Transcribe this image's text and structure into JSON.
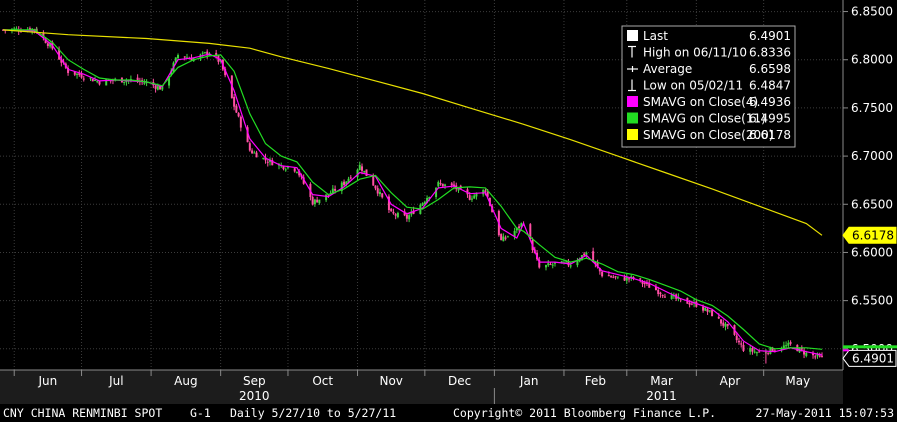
{
  "chart_data": {
    "type": "candlestick",
    "y_axis": {
      "side": "right",
      "ylim": [
        6.478,
        6.862
      ],
      "ticks": [
        "6.8500",
        "6.8000",
        "6.7500",
        "6.7000",
        "6.6500",
        "6.6000",
        "6.5500",
        "6.5000"
      ],
      "tick_values": [
        6.85,
        6.8,
        6.75,
        6.7,
        6.65,
        6.6,
        6.55,
        6.5
      ]
    },
    "x_axis": {
      "months": [
        "Jun",
        "Jul",
        "Aug",
        "Sep",
        "Oct",
        "Nov",
        "Dec",
        "Jan",
        "Feb",
        "Mar",
        "Apr",
        "May"
      ],
      "years": [
        "2010",
        "2011"
      ],
      "range": [
        "2010-05-27",
        "2011-05-27"
      ]
    },
    "legend": {
      "placement": "top-right",
      "rows": [
        {
          "label": "Last",
          "value": "6.4901",
          "marker": "white-square"
        },
        {
          "label": "High on 06/11/10",
          "value": "6.8336",
          "marker": "high-glyph"
        },
        {
          "label": "Average",
          "value": "6.6598",
          "marker": "average-glyph"
        },
        {
          "label": "Low on 05/02/11",
          "value": "6.4847",
          "marker": "low-glyph"
        },
        {
          "label": "SMAVG on Close(4)",
          "value": "6.4936",
          "marker": "magenta-square"
        },
        {
          "label": "SMAVG on Close(11)",
          "value": "6.4995",
          "marker": "green-square"
        },
        {
          "label": "SMAVG on Close(200)",
          "value": "6.6178",
          "marker": "yellow-square"
        }
      ]
    },
    "value_tags": [
      {
        "text": "6.6178",
        "value": 6.6178,
        "color": "#ffff00"
      },
      {
        "text": "6.4901",
        "value": 6.4901,
        "color": "#ffffff"
      }
    ],
    "series": [
      {
        "name": "SMAVG on Close(4)",
        "color": "#ff00ff",
        "points": [
          [
            "2010-05-27",
            6.831
          ],
          [
            "2010-06-10",
            6.83
          ],
          [
            "2010-06-18",
            6.815
          ],
          [
            "2010-06-25",
            6.79
          ],
          [
            "2010-07-02",
            6.785
          ],
          [
            "2010-07-09",
            6.778
          ],
          [
            "2010-07-16",
            6.779
          ],
          [
            "2010-07-23",
            6.778
          ],
          [
            "2010-07-30",
            6.777
          ],
          [
            "2010-08-06",
            6.772
          ],
          [
            "2010-08-13",
            6.8
          ],
          [
            "2010-08-20",
            6.802
          ],
          [
            "2010-08-27",
            6.806
          ],
          [
            "2010-09-01",
            6.8
          ],
          [
            "2010-09-07",
            6.768
          ],
          [
            "2010-09-14",
            6.718
          ],
          [
            "2010-09-21",
            6.698
          ],
          [
            "2010-09-28",
            6.69
          ],
          [
            "2010-10-05",
            6.688
          ],
          [
            "2010-10-12",
            6.66
          ],
          [
            "2010-10-19",
            6.658
          ],
          [
            "2010-10-26",
            6.668
          ],
          [
            "2010-11-02",
            6.683
          ],
          [
            "2010-11-09",
            6.679
          ],
          [
            "2010-11-16",
            6.65
          ],
          [
            "2010-11-23",
            6.64
          ],
          [
            "2010-11-30",
            6.646
          ],
          [
            "2010-12-07",
            6.667
          ],
          [
            "2010-12-14",
            6.669
          ],
          [
            "2010-12-21",
            6.661
          ],
          [
            "2010-12-28",
            6.662
          ],
          [
            "2011-01-04",
            6.625
          ],
          [
            "2011-01-11",
            6.615
          ],
          [
            "2011-01-14",
            6.63
          ],
          [
            "2011-01-21",
            6.59
          ],
          [
            "2011-01-28",
            6.59
          ],
          [
            "2011-02-04",
            6.588
          ],
          [
            "2011-02-11",
            6.597
          ],
          [
            "2011-02-18",
            6.581
          ],
          [
            "2011-02-25",
            6.577
          ],
          [
            "2011-03-04",
            6.573
          ],
          [
            "2011-03-11",
            6.568
          ],
          [
            "2011-03-18",
            6.56
          ],
          [
            "2011-03-25",
            6.552
          ],
          [
            "2011-04-01",
            6.547
          ],
          [
            "2011-04-08",
            6.541
          ],
          [
            "2011-04-15",
            6.528
          ],
          [
            "2011-04-22",
            6.508
          ],
          [
            "2011-04-29",
            6.498
          ],
          [
            "2011-05-06",
            6.497
          ],
          [
            "2011-05-13",
            6.501
          ],
          [
            "2011-05-20",
            6.497
          ],
          [
            "2011-05-27",
            6.4936
          ]
        ]
      },
      {
        "name": "SMAVG on Close(11)",
        "color": "#22dd22",
        "points": [
          [
            "2010-05-27",
            6.831
          ],
          [
            "2010-06-10",
            6.831
          ],
          [
            "2010-06-18",
            6.818
          ],
          [
            "2010-06-25",
            6.8
          ],
          [
            "2010-07-02",
            6.79
          ],
          [
            "2010-07-09",
            6.781
          ],
          [
            "2010-07-16",
            6.779
          ],
          [
            "2010-07-23",
            6.779
          ],
          [
            "2010-07-30",
            6.777
          ],
          [
            "2010-08-06",
            6.773
          ],
          [
            "2010-08-13",
            6.792
          ],
          [
            "2010-08-20",
            6.8
          ],
          [
            "2010-08-27",
            6.804
          ],
          [
            "2010-09-01",
            6.805
          ],
          [
            "2010-09-07",
            6.788
          ],
          [
            "2010-09-14",
            6.744
          ],
          [
            "2010-09-21",
            6.713
          ],
          [
            "2010-09-28",
            6.7
          ],
          [
            "2010-10-05",
            6.694
          ],
          [
            "2010-10-12",
            6.673
          ],
          [
            "2010-10-19",
            6.66
          ],
          [
            "2010-10-26",
            6.666
          ],
          [
            "2010-11-02",
            6.676
          ],
          [
            "2010-11-09",
            6.68
          ],
          [
            "2010-11-16",
            6.662
          ],
          [
            "2010-11-23",
            6.647
          ],
          [
            "2010-11-30",
            6.645
          ],
          [
            "2010-12-07",
            6.655
          ],
          [
            "2010-12-14",
            6.667
          ],
          [
            "2010-12-21",
            6.668
          ],
          [
            "2010-12-28",
            6.667
          ],
          [
            "2011-01-04",
            6.648
          ],
          [
            "2011-01-11",
            6.625
          ],
          [
            "2011-01-14",
            6.622
          ],
          [
            "2011-01-21",
            6.608
          ],
          [
            "2011-01-28",
            6.595
          ],
          [
            "2011-02-04",
            6.59
          ],
          [
            "2011-02-11",
            6.594
          ],
          [
            "2011-02-18",
            6.588
          ],
          [
            "2011-02-25",
            6.58
          ],
          [
            "2011-03-04",
            6.577
          ],
          [
            "2011-03-11",
            6.572
          ],
          [
            "2011-03-18",
            6.566
          ],
          [
            "2011-03-25",
            6.56
          ],
          [
            "2011-04-01",
            6.551
          ],
          [
            "2011-04-08",
            6.545
          ],
          [
            "2011-04-15",
            6.534
          ],
          [
            "2011-04-22",
            6.52
          ],
          [
            "2011-04-29",
            6.505
          ],
          [
            "2011-05-06",
            6.5
          ],
          [
            "2011-05-13",
            6.501
          ],
          [
            "2011-05-20",
            6.501
          ],
          [
            "2011-05-27",
            6.4995
          ]
        ]
      },
      {
        "name": "SMAVG on Close(200)",
        "color": "#e8e000",
        "points": [
          [
            "2010-05-27",
            6.831
          ],
          [
            "2010-06-25",
            6.826
          ],
          [
            "2010-07-30",
            6.822
          ],
          [
            "2010-08-27",
            6.817
          ],
          [
            "2010-09-14",
            6.812
          ],
          [
            "2010-09-28",
            6.803
          ],
          [
            "2010-10-19",
            6.791
          ],
          [
            "2010-11-09",
            6.778
          ],
          [
            "2010-11-30",
            6.765
          ],
          [
            "2010-12-21",
            6.75
          ],
          [
            "2011-01-14",
            6.733
          ],
          [
            "2011-02-04",
            6.717
          ],
          [
            "2011-02-25",
            6.7
          ],
          [
            "2011-03-18",
            6.683
          ],
          [
            "2011-04-08",
            6.666
          ],
          [
            "2011-04-29",
            6.648
          ],
          [
            "2011-05-20",
            6.63
          ],
          [
            "2011-05-27",
            6.6178
          ]
        ]
      },
      {
        "name": "Close",
        "color": "#e8e8e8",
        "points": [
          [
            "2010-05-27",
            6.831
          ],
          [
            "2010-06-10",
            6.832
          ],
          [
            "2010-06-18",
            6.812
          ],
          [
            "2010-06-25",
            6.788
          ],
          [
            "2010-07-02",
            6.783
          ],
          [
            "2010-07-09",
            6.777
          ],
          [
            "2010-07-16",
            6.779
          ],
          [
            "2010-07-23",
            6.779
          ],
          [
            "2010-07-30",
            6.776
          ],
          [
            "2010-08-06",
            6.77
          ],
          [
            "2010-08-13",
            6.805
          ],
          [
            "2010-08-20",
            6.801
          ],
          [
            "2010-08-27",
            6.808
          ],
          [
            "2010-09-01",
            6.797
          ],
          [
            "2010-09-07",
            6.752
          ],
          [
            "2010-09-14",
            6.706
          ],
          [
            "2010-09-21",
            6.696
          ],
          [
            "2010-09-28",
            6.69
          ],
          [
            "2010-10-05",
            6.686
          ],
          [
            "2010-10-12",
            6.652
          ],
          [
            "2010-10-19",
            6.66
          ],
          [
            "2010-10-26",
            6.672
          ],
          [
            "2010-11-02",
            6.69
          ],
          [
            "2010-11-09",
            6.668
          ],
          [
            "2010-11-16",
            6.64
          ],
          [
            "2010-11-23",
            6.636
          ],
          [
            "2010-11-30",
            6.652
          ],
          [
            "2010-12-07",
            6.671
          ],
          [
            "2010-12-14",
            6.668
          ],
          [
            "2010-12-21",
            6.657
          ],
          [
            "2010-12-28",
            6.665
          ],
          [
            "2011-01-04",
            6.612
          ],
          [
            "2011-01-11",
            6.624
          ],
          [
            "2011-01-14",
            6.632
          ],
          [
            "2011-01-21",
            6.584
          ],
          [
            "2011-01-28",
            6.588
          ],
          [
            "2011-02-04",
            6.588
          ],
          [
            "2011-02-11",
            6.6
          ],
          [
            "2011-02-18",
            6.577
          ],
          [
            "2011-02-25",
            6.573
          ],
          [
            "2011-03-04",
            6.573
          ],
          [
            "2011-03-11",
            6.565
          ],
          [
            "2011-03-18",
            6.556
          ],
          [
            "2011-03-25",
            6.55
          ],
          [
            "2011-04-01",
            6.546
          ],
          [
            "2011-04-08",
            6.536
          ],
          [
            "2011-04-15",
            6.521
          ],
          [
            "2011-04-22",
            6.5
          ],
          [
            "2011-04-29",
            6.496
          ],
          [
            "2011-05-06",
            6.5
          ],
          [
            "2011-05-13",
            6.504
          ],
          [
            "2011-05-20",
            6.495
          ],
          [
            "2011-05-27",
            6.4901
          ]
        ]
      }
    ],
    "noted_extremes": [
      {
        "date": "2010-06-11",
        "type": "high",
        "value": 6.8336
      },
      {
        "date": "2011-05-02",
        "type": "low",
        "value": 6.4847
      }
    ]
  },
  "footer": {
    "security": "CNY  CHINA RENMINBI SPOT",
    "chart_id": "G-1",
    "period": "Daily  5/27/10 to 5/27/11",
    "copyright": "Copyright© 2011 Bloomberg Finance L.P.",
    "timestamp": "27-May-2011 15:07:53"
  },
  "colors": {
    "background": "#000000",
    "grid": "#3c3c3c",
    "axis_band": "#202020",
    "up_candle": "#3fd33f",
    "down_candle": "#ff4fa4"
  }
}
